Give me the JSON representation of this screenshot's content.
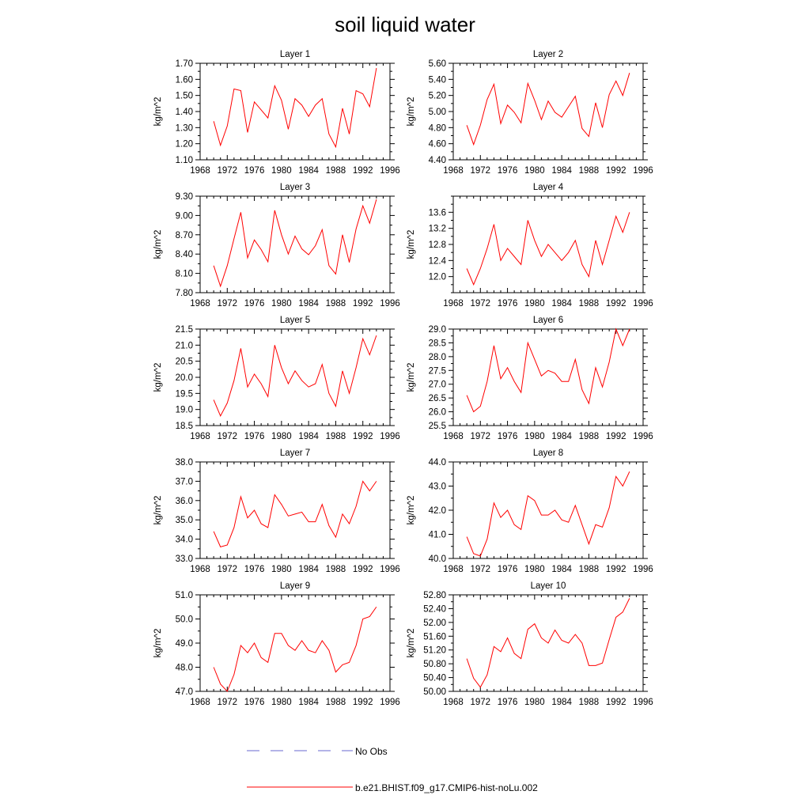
{
  "title": "soil liquid water",
  "legend": [
    {
      "label": "No Obs",
      "color": "#6a6ad0",
      "dash": "dashed"
    },
    {
      "label": "b.e21.BHIST.f09_g17.CMIP6-hist-noLu.002",
      "color": "#ff0000",
      "dash": "solid"
    }
  ],
  "chart_data": [
    {
      "type": "line",
      "title": "Layer 1",
      "xlabel": "",
      "ylabel": "kg/m^2",
      "xlim": [
        1968,
        1996
      ],
      "ylim": [
        1.1,
        1.7
      ],
      "xticks": [
        "1968",
        "1972",
        "1976",
        "1980",
        "1984",
        "1988",
        "1992",
        "1996"
      ],
      "yticks": [
        "1.10",
        "1.20",
        "1.30",
        "1.40",
        "1.50",
        "1.60",
        "1.70"
      ],
      "x": [
        1970,
        1971,
        1972,
        1973,
        1974,
        1975,
        1976,
        1977,
        1978,
        1979,
        1980,
        1981,
        1982,
        1983,
        1984,
        1985,
        1986,
        1987,
        1988,
        1989,
        1990,
        1991,
        1992,
        1993,
        1994
      ],
      "series": [
        {
          "name": "b.e21.BHIST.f09_g17.CMIP6-hist-noLu.002",
          "values": [
            1.34,
            1.19,
            1.31,
            1.54,
            1.53,
            1.27,
            1.46,
            1.41,
            1.36,
            1.56,
            1.47,
            1.29,
            1.48,
            1.44,
            1.37,
            1.44,
            1.48,
            1.26,
            1.18,
            1.42,
            1.26,
            1.53,
            1.51,
            1.43,
            1.67
          ]
        }
      ]
    },
    {
      "type": "line",
      "title": "Layer 2",
      "xlabel": "",
      "ylabel": "kg/m^2",
      "xlim": [
        1968,
        1996
      ],
      "ylim": [
        4.4,
        5.6
      ],
      "xticks": [
        "1968",
        "1972",
        "1976",
        "1980",
        "1984",
        "1988",
        "1992",
        "1996"
      ],
      "yticks": [
        "4.40",
        "4.60",
        "4.80",
        "5.00",
        "5.20",
        "5.40",
        "5.60"
      ],
      "x": [
        1970,
        1971,
        1972,
        1973,
        1974,
        1975,
        1976,
        1977,
        1978,
        1979,
        1980,
        1981,
        1982,
        1983,
        1984,
        1985,
        1986,
        1987,
        1988,
        1989,
        1990,
        1991,
        1992,
        1993,
        1994
      ],
      "series": [
        {
          "name": "b.e21.BHIST.f09_g17.CMIP6-hist-noLu.002",
          "values": [
            4.83,
            4.59,
            4.83,
            5.15,
            5.34,
            4.85,
            5.08,
            4.99,
            4.86,
            5.35,
            5.14,
            4.9,
            5.13,
            4.99,
            4.93,
            5.06,
            5.19,
            4.79,
            4.69,
            5.11,
            4.8,
            5.21,
            5.38,
            5.2,
            5.48
          ]
        }
      ]
    },
    {
      "type": "line",
      "title": "Layer 3",
      "xlabel": "",
      "ylabel": "kg/m^2",
      "xlim": [
        1968,
        1996
      ],
      "ylim": [
        7.8,
        9.3
      ],
      "xticks": [
        "1968",
        "1972",
        "1976",
        "1980",
        "1984",
        "1988",
        "1992",
        "1996"
      ],
      "yticks": [
        "7.80",
        "8.10",
        "8.40",
        "8.70",
        "9.00",
        "9.30"
      ],
      "x": [
        1970,
        1971,
        1972,
        1973,
        1974,
        1975,
        1976,
        1977,
        1978,
        1979,
        1980,
        1981,
        1982,
        1983,
        1984,
        1985,
        1986,
        1987,
        1988,
        1989,
        1990,
        1991,
        1992,
        1993,
        1994
      ],
      "series": [
        {
          "name": "b.e21.BHIST.f09_g17.CMIP6-hist-noLu.002",
          "values": [
            8.22,
            7.9,
            8.22,
            8.64,
            9.05,
            8.34,
            8.62,
            8.47,
            8.28,
            9.08,
            8.7,
            8.4,
            8.68,
            8.48,
            8.39,
            8.53,
            8.78,
            8.22,
            8.09,
            8.7,
            8.27,
            8.79,
            9.15,
            8.88,
            9.25
          ]
        }
      ]
    },
    {
      "type": "line",
      "title": "Layer 4",
      "xlabel": "",
      "ylabel": "kg/m^2",
      "xlim": [
        1968,
        1996
      ],
      "ylim": [
        11.6,
        14.0
      ],
      "xticks": [
        "1968",
        "1972",
        "1976",
        "1980",
        "1984",
        "1988",
        "1992",
        "1996"
      ],
      "yticks": [
        "12.0",
        "12.4",
        "12.8",
        "13.2",
        "13.6"
      ],
      "x": [
        1970,
        1971,
        1972,
        1973,
        1974,
        1975,
        1976,
        1977,
        1978,
        1979,
        1980,
        1981,
        1982,
        1983,
        1984,
        1985,
        1986,
        1987,
        1988,
        1989,
        1990,
        1991,
        1992,
        1993,
        1994
      ],
      "series": [
        {
          "name": "b.e21.BHIST.f09_g17.CMIP6-hist-noLu.002",
          "values": [
            12.2,
            11.8,
            12.2,
            12.7,
            13.3,
            12.4,
            12.7,
            12.5,
            12.3,
            13.4,
            12.9,
            12.5,
            12.8,
            12.6,
            12.4,
            12.6,
            12.9,
            12.3,
            12.0,
            12.9,
            12.3,
            12.9,
            13.5,
            13.1,
            13.6
          ]
        }
      ]
    },
    {
      "type": "line",
      "title": "Layer 5",
      "xlabel": "",
      "ylabel": "kg/m^2",
      "xlim": [
        1968,
        1996
      ],
      "ylim": [
        18.5,
        21.5
      ],
      "xticks": [
        "1968",
        "1972",
        "1976",
        "1980",
        "1984",
        "1988",
        "1992",
        "1996"
      ],
      "yticks": [
        "18.5",
        "19.0",
        "19.5",
        "20.0",
        "20.5",
        "21.0",
        "21.5"
      ],
      "x": [
        1970,
        1971,
        1972,
        1973,
        1974,
        1975,
        1976,
        1977,
        1978,
        1979,
        1980,
        1981,
        1982,
        1983,
        1984,
        1985,
        1986,
        1987,
        1988,
        1989,
        1990,
        1991,
        1992,
        1993,
        1994
      ],
      "series": [
        {
          "name": "b.e21.BHIST.f09_g17.CMIP6-hist-noLu.002",
          "values": [
            19.3,
            18.8,
            19.2,
            19.9,
            20.9,
            19.7,
            20.1,
            19.8,
            19.4,
            21.0,
            20.3,
            19.8,
            20.2,
            19.9,
            19.7,
            19.8,
            20.4,
            19.5,
            19.1,
            20.2,
            19.5,
            20.3,
            21.2,
            20.7,
            21.3
          ]
        }
      ]
    },
    {
      "type": "line",
      "title": "Layer 6",
      "xlabel": "",
      "ylabel": "kg/m^2",
      "xlim": [
        1968,
        1996
      ],
      "ylim": [
        25.5,
        29.0
      ],
      "xticks": [
        "1968",
        "1972",
        "1976",
        "1980",
        "1984",
        "1988",
        "1992",
        "1996"
      ],
      "yticks": [
        "25.5",
        "26.0",
        "26.5",
        "27.0",
        "27.5",
        "28.0",
        "28.5",
        "29.0"
      ],
      "x": [
        1970,
        1971,
        1972,
        1973,
        1974,
        1975,
        1976,
        1977,
        1978,
        1979,
        1980,
        1981,
        1982,
        1983,
        1984,
        1985,
        1986,
        1987,
        1988,
        1989,
        1990,
        1991,
        1992,
        1993,
        1994
      ],
      "series": [
        {
          "name": "b.e21.BHIST.f09_g17.CMIP6-hist-noLu.002",
          "values": [
            26.6,
            26.0,
            26.2,
            27.1,
            28.4,
            27.2,
            27.6,
            27.1,
            26.7,
            28.5,
            27.9,
            27.3,
            27.5,
            27.4,
            27.1,
            27.1,
            27.9,
            26.8,
            26.3,
            27.6,
            26.9,
            27.8,
            29.0,
            28.4,
            29.0
          ]
        }
      ]
    },
    {
      "type": "line",
      "title": "Layer 7",
      "xlabel": "",
      "ylabel": "kg/m^2",
      "xlim": [
        1968,
        1996
      ],
      "ylim": [
        33.0,
        38.0
      ],
      "xticks": [
        "1968",
        "1972",
        "1976",
        "1980",
        "1984",
        "1988",
        "1992",
        "1996"
      ],
      "yticks": [
        "33.0",
        "34.0",
        "35.0",
        "36.0",
        "37.0",
        "38.0"
      ],
      "x": [
        1970,
        1971,
        1972,
        1973,
        1974,
        1975,
        1976,
        1977,
        1978,
        1979,
        1980,
        1981,
        1982,
        1983,
        1984,
        1985,
        1986,
        1987,
        1988,
        1989,
        1990,
        1991,
        1992,
        1993,
        1994
      ],
      "series": [
        {
          "name": "b.e21.BHIST.f09_g17.CMIP6-hist-noLu.002",
          "values": [
            34.4,
            33.6,
            33.7,
            34.6,
            36.2,
            35.1,
            35.5,
            34.8,
            34.6,
            36.3,
            35.8,
            35.2,
            35.3,
            35.4,
            34.9,
            34.9,
            35.8,
            34.7,
            34.1,
            35.3,
            34.8,
            35.7,
            37.0,
            36.5,
            37.0
          ]
        }
      ]
    },
    {
      "type": "line",
      "title": "Layer 8",
      "xlabel": "",
      "ylabel": "kg/m^2",
      "xlim": [
        1968,
        1996
      ],
      "ylim": [
        40.0,
        44.0
      ],
      "xticks": [
        "1968",
        "1972",
        "1976",
        "1980",
        "1984",
        "1988",
        "1992",
        "1996"
      ],
      "yticks": [
        "40.0",
        "41.0",
        "42.0",
        "43.0",
        "44.0"
      ],
      "x": [
        1970,
        1971,
        1972,
        1973,
        1974,
        1975,
        1976,
        1977,
        1978,
        1979,
        1980,
        1981,
        1982,
        1983,
        1984,
        1985,
        1986,
        1987,
        1988,
        1989,
        1990,
        1991,
        1992,
        1993,
        1994
      ],
      "series": [
        {
          "name": "b.e21.BHIST.f09_g17.CMIP6-hist-noLu.002",
          "values": [
            40.9,
            40.2,
            40.1,
            40.8,
            42.3,
            41.7,
            42.0,
            41.4,
            41.2,
            42.6,
            42.4,
            41.8,
            41.8,
            42.0,
            41.6,
            41.5,
            42.2,
            41.4,
            40.6,
            41.4,
            41.3,
            42.1,
            43.4,
            43.0,
            43.6
          ]
        }
      ]
    },
    {
      "type": "line",
      "title": "Layer 9",
      "xlabel": "",
      "ylabel": "kg/m^2",
      "xlim": [
        1968,
        1996
      ],
      "ylim": [
        47.0,
        51.0
      ],
      "xticks": [
        "1968",
        "1972",
        "1976",
        "1980",
        "1984",
        "1988",
        "1992",
        "1996"
      ],
      "yticks": [
        "47.0",
        "48.0",
        "49.0",
        "50.0",
        "51.0"
      ],
      "x": [
        1970,
        1971,
        1972,
        1973,
        1974,
        1975,
        1976,
        1977,
        1978,
        1979,
        1980,
        1981,
        1982,
        1983,
        1984,
        1985,
        1986,
        1987,
        1988,
        1989,
        1990,
        1991,
        1992,
        1993,
        1994
      ],
      "series": [
        {
          "name": "b.e21.BHIST.f09_g17.CMIP6-hist-noLu.002",
          "values": [
            48.0,
            47.3,
            47.0,
            47.7,
            48.9,
            48.6,
            49.0,
            48.4,
            48.2,
            49.4,
            49.4,
            48.9,
            48.7,
            49.1,
            48.7,
            48.6,
            49.1,
            48.7,
            47.8,
            48.1,
            48.2,
            48.9,
            50.0,
            50.1,
            50.5
          ]
        }
      ]
    },
    {
      "type": "line",
      "title": "Layer 10",
      "xlabel": "",
      "ylabel": "kg/m^2",
      "xlim": [
        1968,
        1996
      ],
      "ylim": [
        50.0,
        52.8
      ],
      "xticks": [
        "1968",
        "1972",
        "1976",
        "1980",
        "1984",
        "1988",
        "1992",
        "1996"
      ],
      "yticks": [
        "50.00",
        "50.40",
        "50.80",
        "51.20",
        "51.60",
        "52.00",
        "52.40",
        "52.80"
      ],
      "x": [
        1970,
        1971,
        1972,
        1973,
        1974,
        1975,
        1976,
        1977,
        1978,
        1979,
        1980,
        1981,
        1982,
        1983,
        1984,
        1985,
        1986,
        1987,
        1988,
        1989,
        1990,
        1991,
        1992,
        1993,
        1994
      ],
      "series": [
        {
          "name": "b.e21.BHIST.f09_g17.CMIP6-hist-noLu.002",
          "values": [
            50.95,
            50.38,
            50.12,
            50.48,
            51.3,
            51.15,
            51.55,
            51.1,
            50.95,
            51.8,
            51.96,
            51.55,
            51.4,
            51.78,
            51.48,
            51.4,
            51.65,
            51.4,
            50.75,
            50.75,
            50.82,
            51.5,
            52.15,
            52.3,
            52.7
          ]
        }
      ]
    }
  ]
}
